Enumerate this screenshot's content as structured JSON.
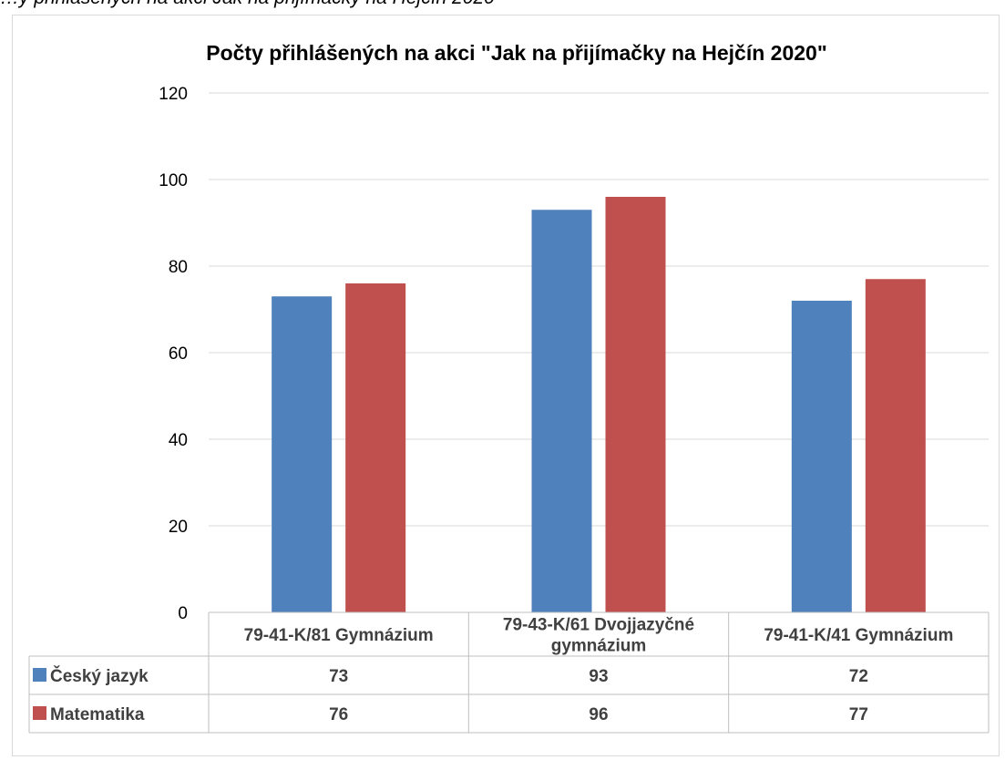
{
  "caption": "…y přihlášených na akci Jak na přijímačky na Hejčín 2020",
  "chart_data": {
    "type": "bar",
    "title": "Počty přihlášených na akci \"Jak na přijímačky na Hejčín 2020\"",
    "categories": [
      [
        "79-41-K/81 Gymnázium"
      ],
      [
        "79-43-K/61 Dvojjazyčné",
        "gymnázium"
      ],
      [
        "79-41-K/41 Gymnázium"
      ]
    ],
    "series": [
      {
        "name": "Český jazyk",
        "values": [
          73,
          93,
          72
        ],
        "color": "#4f81bd"
      },
      {
        "name": "Matematika",
        "values": [
          76,
          96,
          77
        ],
        "color": "#c0504d"
      }
    ],
    "ylim": [
      0,
      120
    ],
    "yticks": [
      0,
      20,
      40,
      60,
      80,
      100,
      120
    ],
    "grid": true,
    "legend": "data-table"
  }
}
